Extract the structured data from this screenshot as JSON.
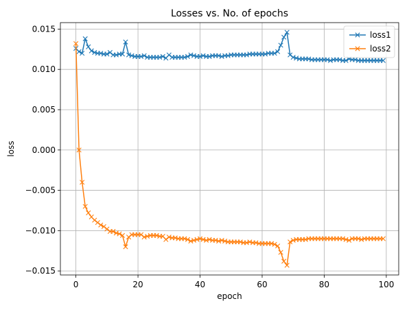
{
  "chart_data": {
    "type": "line",
    "title": "Losses vs. No. of epochs",
    "xlabel": "epoch",
    "ylabel": "loss",
    "xlim": [
      -5,
      104
    ],
    "ylim": [
      -0.0155,
      0.0158
    ],
    "xticks": [
      0,
      20,
      40,
      60,
      80,
      100
    ],
    "xtick_labels": [
      "0",
      "20",
      "40",
      "60",
      "80",
      "100"
    ],
    "yticks": [
      -0.015,
      -0.01,
      -0.005,
      0.0,
      0.005,
      0.01,
      0.015
    ],
    "ytick_labels": [
      "−0.015",
      "−0.010",
      "−0.005",
      "0.000",
      "0.005",
      "0.010",
      "0.015"
    ],
    "grid": true,
    "legend_position": "top-right",
    "marker": "x",
    "x": [
      0,
      1,
      2,
      3,
      4,
      5,
      6,
      7,
      8,
      9,
      10,
      11,
      12,
      13,
      14,
      15,
      16,
      17,
      18,
      19,
      20,
      21,
      22,
      23,
      24,
      25,
      26,
      27,
      28,
      29,
      30,
      31,
      32,
      33,
      34,
      35,
      36,
      37,
      38,
      39,
      40,
      41,
      42,
      43,
      44,
      45,
      46,
      47,
      48,
      49,
      50,
      51,
      52,
      53,
      54,
      55,
      56,
      57,
      58,
      59,
      60,
      61,
      62,
      63,
      64,
      65,
      66,
      67,
      68,
      69,
      70,
      71,
      72,
      73,
      74,
      75,
      76,
      77,
      78,
      79,
      80,
      81,
      82,
      83,
      84,
      85,
      86,
      87,
      88,
      89,
      90,
      91,
      92,
      93,
      94,
      95,
      96,
      97,
      98,
      99
    ],
    "series": [
      {
        "name": "loss1",
        "color": "#1f77b4",
        "values": [
          0.0126,
          0.0122,
          0.012,
          0.0138,
          0.0128,
          0.0123,
          0.0121,
          0.012,
          0.012,
          0.0119,
          0.0119,
          0.0121,
          0.0118,
          0.0118,
          0.0119,
          0.0119,
          0.0134,
          0.0118,
          0.0117,
          0.0116,
          0.0116,
          0.0116,
          0.0117,
          0.0115,
          0.0115,
          0.0115,
          0.0115,
          0.0115,
          0.0116,
          0.0114,
          0.0118,
          0.0115,
          0.0115,
          0.0115,
          0.0115,
          0.0115,
          0.0116,
          0.0118,
          0.0117,
          0.0116,
          0.0116,
          0.0117,
          0.0116,
          0.0116,
          0.0117,
          0.0117,
          0.0117,
          0.0116,
          0.0117,
          0.0117,
          0.0118,
          0.0118,
          0.0118,
          0.0118,
          0.0118,
          0.0118,
          0.0119,
          0.0119,
          0.0119,
          0.0119,
          0.0119,
          0.0119,
          0.012,
          0.012,
          0.012,
          0.0122,
          0.013,
          0.014,
          0.0146,
          0.0118,
          0.0115,
          0.0114,
          0.0113,
          0.0113,
          0.0113,
          0.0113,
          0.0112,
          0.0112,
          0.0112,
          0.0112,
          0.0112,
          0.0112,
          0.0111,
          0.0112,
          0.0112,
          0.0112,
          0.0111,
          0.0111,
          0.0113,
          0.0112,
          0.0112,
          0.0111,
          0.0111,
          0.0111,
          0.0111,
          0.0111,
          0.0111,
          0.0111,
          0.0111,
          0.0111
        ]
      },
      {
        "name": "loss2",
        "color": "#ff7f0e",
        "values": [
          0.0132,
          0.0,
          -0.004,
          -0.007,
          -0.0078,
          -0.0083,
          -0.0087,
          -0.009,
          -0.0093,
          -0.0095,
          -0.0098,
          -0.0101,
          -0.0101,
          -0.0103,
          -0.0104,
          -0.0106,
          -0.012,
          -0.0108,
          -0.0105,
          -0.0105,
          -0.0105,
          -0.0105,
          -0.0108,
          -0.0107,
          -0.0106,
          -0.0106,
          -0.0106,
          -0.0107,
          -0.0107,
          -0.0111,
          -0.0108,
          -0.0109,
          -0.0109,
          -0.011,
          -0.011,
          -0.011,
          -0.0111,
          -0.0113,
          -0.0112,
          -0.0111,
          -0.011,
          -0.0111,
          -0.0112,
          -0.0111,
          -0.0112,
          -0.0112,
          -0.0113,
          -0.0112,
          -0.0113,
          -0.0114,
          -0.0114,
          -0.0114,
          -0.0114,
          -0.0114,
          -0.0115,
          -0.0115,
          -0.0114,
          -0.0115,
          -0.0115,
          -0.0116,
          -0.0116,
          -0.0116,
          -0.0116,
          -0.0116,
          -0.0117,
          -0.0119,
          -0.0127,
          -0.0138,
          -0.0143,
          -0.0114,
          -0.0112,
          -0.0111,
          -0.0111,
          -0.0111,
          -0.0111,
          -0.011,
          -0.011,
          -0.011,
          -0.011,
          -0.011,
          -0.011,
          -0.011,
          -0.011,
          -0.011,
          -0.011,
          -0.011,
          -0.011,
          -0.0111,
          -0.0112,
          -0.011,
          -0.011,
          -0.011,
          -0.0111,
          -0.011,
          -0.011,
          -0.011,
          -0.011,
          -0.011,
          -0.011,
          -0.011
        ]
      }
    ]
  }
}
